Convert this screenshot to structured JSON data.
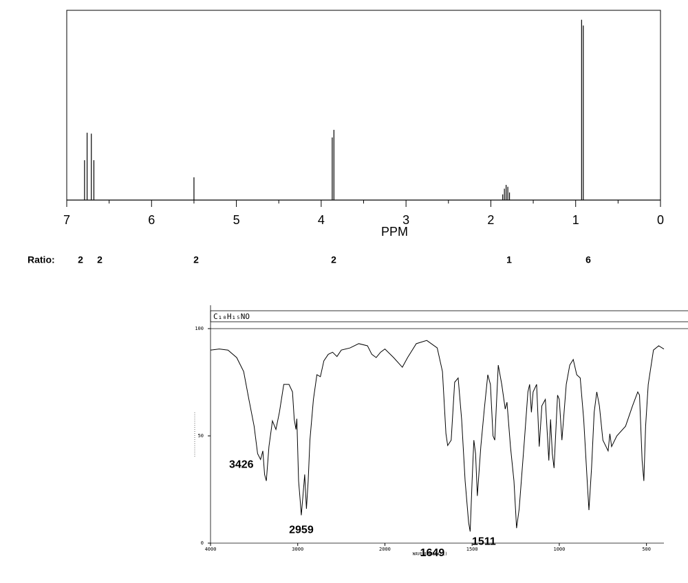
{
  "chart_data": [
    {
      "type": "stem",
      "xlabel": "PPM",
      "xlim": [
        7,
        0
      ],
      "xticks": [
        7,
        6,
        5,
        4,
        3,
        2,
        1,
        0
      ],
      "xticks_minor": [
        6.5,
        5.5,
        4.5,
        3.5,
        2.5,
        1.5,
        0.5
      ],
      "x": [
        6.79,
        6.76,
        6.71,
        6.68,
        5.5,
        3.87,
        3.85,
        1.86,
        1.84,
        1.82,
        1.8,
        1.78,
        0.93,
        0.91
      ],
      "values": [
        21,
        35.5,
        35,
        21,
        12,
        33,
        37,
        3,
        6,
        8,
        7,
        4,
        95,
        92
      ],
      "ylim": [
        0,
        100
      ],
      "color": "#000000",
      "ratio_label": "Ratio:",
      "ratios": [
        2,
        2,
        2,
        2,
        1,
        6
      ]
    },
    {
      "type": "line",
      "title": "C₁₀H₁₅NO",
      "xlabel": "WAVENUMBER(-1)",
      "xlim": [
        4000,
        400
      ],
      "xscale_break": 2000,
      "xticks": [
        4000,
        3000,
        2000,
        1500,
        1000,
        500
      ],
      "ylim": [
        0,
        100
      ],
      "yticks": [
        0,
        50,
        100
      ],
      "color": "#000000",
      "annotations": [
        3426,
        2959,
        1649,
        1511
      ],
      "x": [
        4000,
        3900,
        3800,
        3700,
        3620,
        3560,
        3500,
        3460,
        3426,
        3400,
        3380,
        3360,
        3330,
        3290,
        3250,
        3210,
        3160,
        3100,
        3060,
        3040,
        3020,
        3010,
        2990,
        2970,
        2959,
        2940,
        2920,
        2900,
        2880,
        2860,
        2820,
        2780,
        2740,
        2700,
        2650,
        2600,
        2550,
        2500,
        2400,
        2300,
        2200,
        2150,
        2100,
        2050,
        2000,
        1950,
        1900,
        1870,
        1820,
        1760,
        1700,
        1670,
        1650,
        1640,
        1620,
        1600,
        1580,
        1560,
        1540,
        1520,
        1511,
        1500,
        1490,
        1480,
        1470,
        1450,
        1430,
        1410,
        1395,
        1380,
        1370,
        1350,
        1330,
        1310,
        1300,
        1280,
        1260,
        1245,
        1230,
        1200,
        1180,
        1170,
        1160,
        1150,
        1130,
        1115,
        1100,
        1080,
        1060,
        1050,
        1040,
        1030,
        1010,
        1000,
        985,
        960,
        940,
        920,
        900,
        880,
        860,
        840,
        830,
        815,
        800,
        785,
        770,
        750,
        720,
        710,
        700,
        670,
        620,
        580,
        550,
        540,
        525,
        515,
        505,
        490,
        460,
        430,
        400
      ],
      "values": [
        90,
        90.5,
        90,
        86.5,
        80,
        67,
        54.5,
        41.7,
        39,
        43,
        32,
        29,
        45,
        57,
        53,
        61,
        74,
        74,
        70.5,
        57.7,
        53,
        58,
        29,
        19,
        13,
        22,
        32,
        16,
        29,
        48,
        67,
        78.5,
        77.6,
        85,
        88,
        89,
        87,
        90,
        91,
        93,
        92,
        88,
        86.5,
        89,
        90.5,
        86.5,
        82,
        86.5,
        93,
        94.5,
        91,
        80,
        51,
        45.5,
        48,
        75,
        77,
        57.7,
        29,
        9.6,
        5.4,
        29,
        48,
        41.7,
        22,
        45,
        62.5,
        78.5,
        74,
        50,
        48,
        83,
        74,
        62.5,
        65.7,
        45,
        29,
        7,
        16,
        48,
        70.5,
        74,
        61,
        70.5,
        74,
        45,
        64,
        67,
        38.5,
        57.7,
        41.7,
        35,
        69,
        67,
        48,
        74,
        83,
        85.6,
        78.5,
        77,
        57.7,
        29,
        15.4,
        35,
        61,
        70.5,
        64,
        48,
        43,
        51,
        45,
        50,
        54.5,
        64,
        70.5,
        69,
        38.5,
        29,
        54.5,
        74,
        90,
        92,
        90.5
      ]
    }
  ]
}
